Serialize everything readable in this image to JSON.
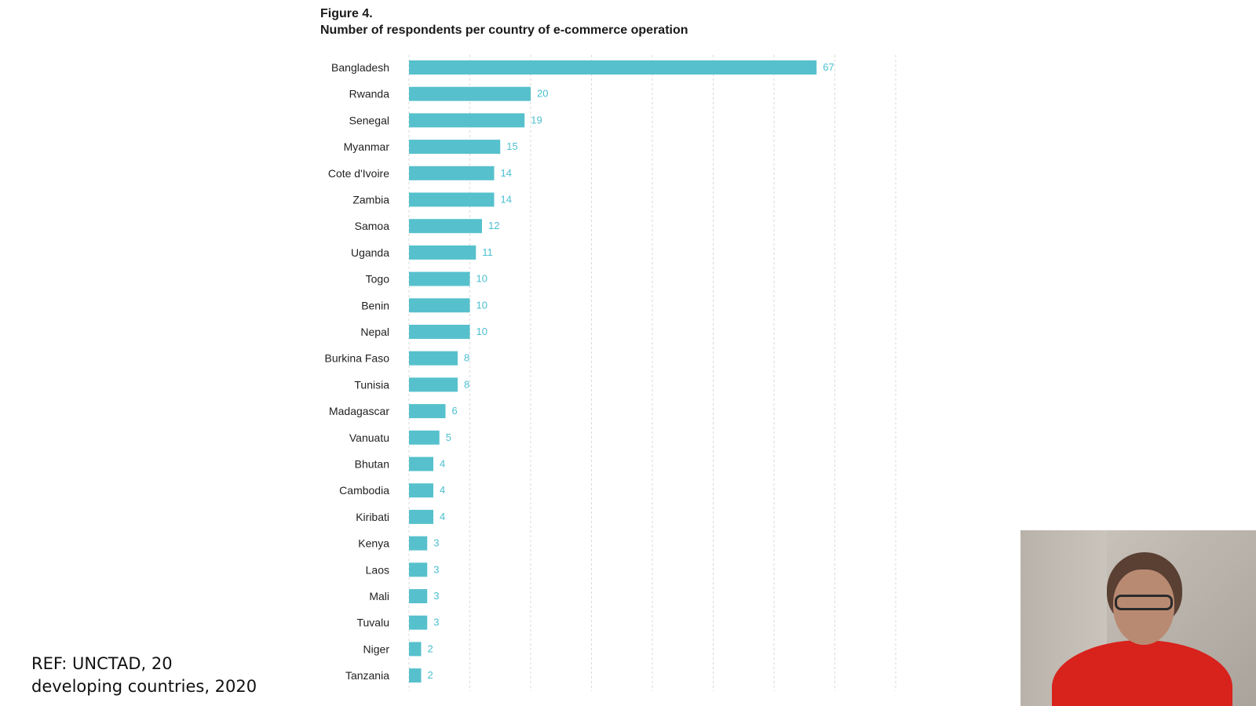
{
  "figure": {
    "label": "Figure 4.",
    "title": "Number of respondents per country of e-commerce operation"
  },
  "chart_data": {
    "type": "bar",
    "orientation": "horizontal",
    "title": "Number of respondents per country of e-commerce operation",
    "categories": [
      "Bangladesh",
      "Rwanda",
      "Senegal",
      "Myanmar",
      "Cote d'Ivoire",
      "Zambia",
      "Samoa",
      "Uganda",
      "Togo",
      "Benin",
      "Nepal",
      "Burkina Faso",
      "Tunisia",
      "Madagascar",
      "Vanuatu",
      "Bhutan",
      "Cambodia",
      "Kiribati",
      "Kenya",
      "Laos",
      "Mali",
      "Tuvalu",
      "Niger",
      "Tanzania"
    ],
    "values": [
      67,
      20,
      19,
      15,
      14,
      14,
      12,
      11,
      10,
      10,
      10,
      8,
      8,
      6,
      5,
      4,
      4,
      4,
      3,
      3,
      3,
      3,
      2,
      2
    ],
    "xlim": [
      0,
      80
    ],
    "grid": true,
    "bar_color": "#56c1cc",
    "value_label_color": "#4bbfd0"
  },
  "reference": {
    "line1": "REF: UNCTAD, 20",
    "line2": "developing countries, 2020"
  }
}
